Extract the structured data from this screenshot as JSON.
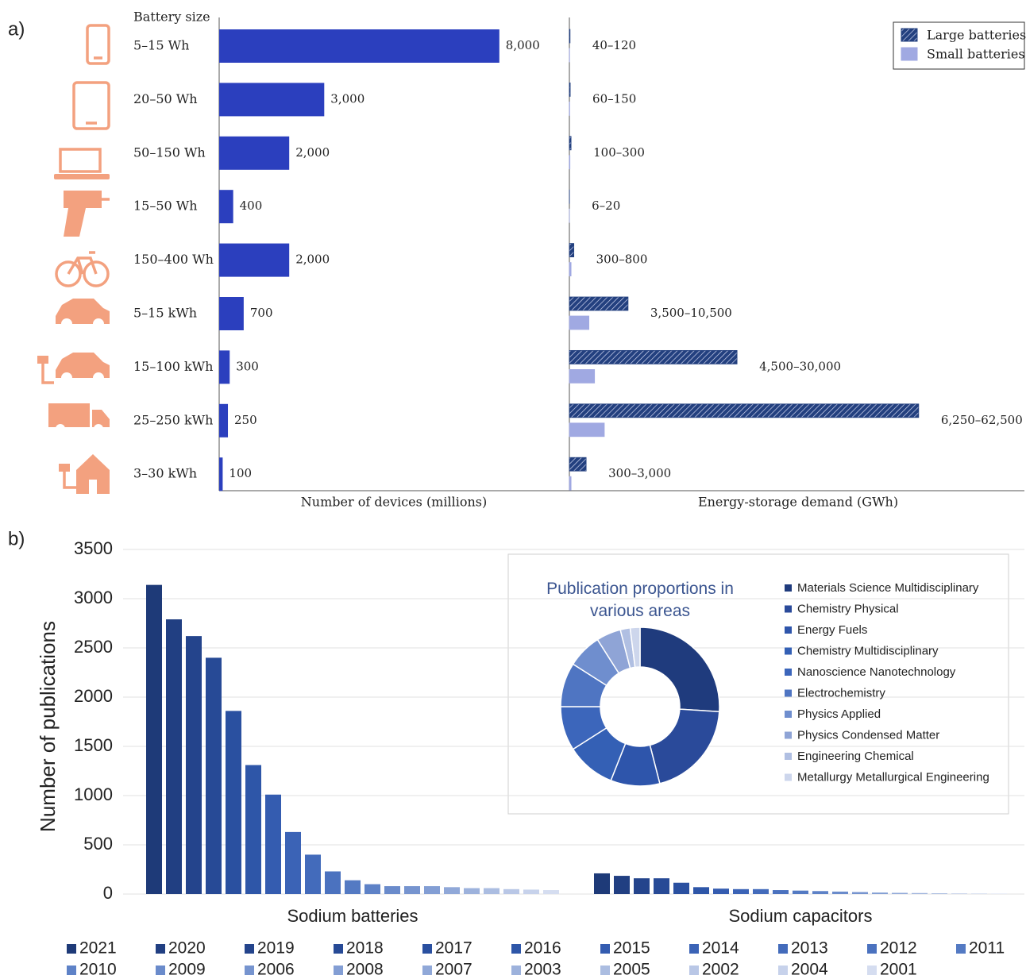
{
  "panel_labels": [
    "a)",
    "b)"
  ],
  "chart_data": [
    {
      "type": "hbar",
      "header": "Battery size",
      "categories": [
        "5–15 Wh",
        "20–50 Wh",
        "50–150 Wh",
        "15–50 Wh",
        "150–400 Wh",
        "5–15 kWh",
        "15–100 kWh",
        "25–250 kWh",
        "3–30 kWh"
      ],
      "values": [
        8000,
        3000,
        2000,
        400,
        2000,
        700,
        300,
        250,
        100
      ],
      "value_labels": [
        "8,000",
        "3,000",
        "2,000",
        "400",
        "2,000",
        "700",
        "300",
        "250",
        "100"
      ],
      "color": "#2b3fbe",
      "xlabel": "Number of devices (millions)",
      "xlim": [
        0,
        10000
      ]
    },
    {
      "type": "hbar",
      "xlabel": "Energy-storage demand (GWh)",
      "xlim": [
        0,
        80000
      ],
      "legend": "upper right",
      "series": [
        {
          "name": "Large batteries",
          "color": "#23407f",
          "pattern": "hatch",
          "values": [
            120,
            150,
            300,
            20,
            800,
            10500,
            30000,
            62500,
            3000
          ],
          "value_labels": [
            "40–120",
            "60–150",
            "100–300",
            "6–20",
            "300–800",
            "3,500–10,500",
            "4,500–30,000",
            "6,250–62,500",
            "300–3,000"
          ]
        },
        {
          "name": "Small batteries",
          "color": "#a0a9e2",
          "values": [
            40,
            60,
            100,
            6,
            300,
            3500,
            4500,
            6250,
            300
          ]
        }
      ]
    },
    {
      "type": "bar",
      "categories": [
        "Sodium batteries",
        "Sodium capacitors"
      ],
      "ylabel": "Number of publications",
      "ylim": [
        0,
        3500
      ],
      "yticks": [
        0,
        500,
        1000,
        1500,
        2000,
        2500,
        3000,
        3500
      ],
      "grid": true,
      "legend": "bottom",
      "series": [
        {
          "name": "2021",
          "color": "#1e3a78",
          "values": [
            3140,
            210
          ]
        },
        {
          "name": "2020",
          "color": "#213f82",
          "values": [
            2790,
            185
          ]
        },
        {
          "name": "2019",
          "color": "#24448c",
          "values": [
            2620,
            160
          ]
        },
        {
          "name": "2018",
          "color": "#274a96",
          "values": [
            2400,
            160
          ]
        },
        {
          "name": "2017",
          "color": "#2a50a0",
          "values": [
            1860,
            115
          ]
        },
        {
          "name": "2016",
          "color": "#2e56a8",
          "values": [
            1310,
            70
          ]
        },
        {
          "name": "2015",
          "color": "#345cb0",
          "values": [
            1010,
            55
          ]
        },
        {
          "name": "2014",
          "color": "#3b63b6",
          "values": [
            630,
            50
          ]
        },
        {
          "name": "2013",
          "color": "#436bbb",
          "values": [
            400,
            50
          ]
        },
        {
          "name": "2012",
          "color": "#4b72bf",
          "values": [
            230,
            40
          ]
        },
        {
          "name": "2011",
          "color": "#547ac3",
          "values": [
            140,
            35
          ]
        },
        {
          "name": "2010",
          "color": "#5e82c7",
          "values": [
            100,
            30
          ]
        },
        {
          "name": "2009",
          "color": "#6a8bcb",
          "values": [
            80,
            25
          ]
        },
        {
          "name": "2006",
          "color": "#7694cf",
          "values": [
            80,
            20
          ]
        },
        {
          "name": "2008",
          "color": "#839ed4",
          "values": [
            80,
            15
          ]
        },
        {
          "name": "2007",
          "color": "#90a8d8",
          "values": [
            70,
            12
          ]
        },
        {
          "name": "2003",
          "color": "#9db2dc",
          "values": [
            60,
            10
          ]
        },
        {
          "name": "2005",
          "color": "#abbde1",
          "values": [
            60,
            8
          ]
        },
        {
          "name": "2002",
          "color": "#b9c7e6",
          "values": [
            50,
            6
          ]
        },
        {
          "name": "2004",
          "color": "#c7d2eb",
          "values": [
            45,
            5
          ]
        },
        {
          "name": "2001",
          "color": "#d5ddf0",
          "values": [
            40,
            4
          ]
        }
      ]
    },
    {
      "type": "donut",
      "title": "Publication proportions in various areas",
      "categories": [
        "Materials Science Multidisciplinary",
        "Chemistry Physical",
        "Energy Fuels",
        "Chemistry Multidisciplinary",
        "Nanoscience Nanotechnology",
        "Electrochemistry",
        "Physics Applied",
        "Physics Condensed Matter",
        "Engineering Chemical",
        "Metallurgy Metallurgical Engineering"
      ],
      "values": [
        26,
        20,
        10,
        10,
        9,
        9,
        7,
        5,
        2,
        2
      ],
      "colors": [
        "#1f3b7d",
        "#2a4a9a",
        "#2e55ab",
        "#3460b5",
        "#3c66bb",
        "#4f75c2",
        "#6f8ece",
        "#8fa4d6",
        "#b0bfe2",
        "#cdd6ec"
      ]
    }
  ]
}
